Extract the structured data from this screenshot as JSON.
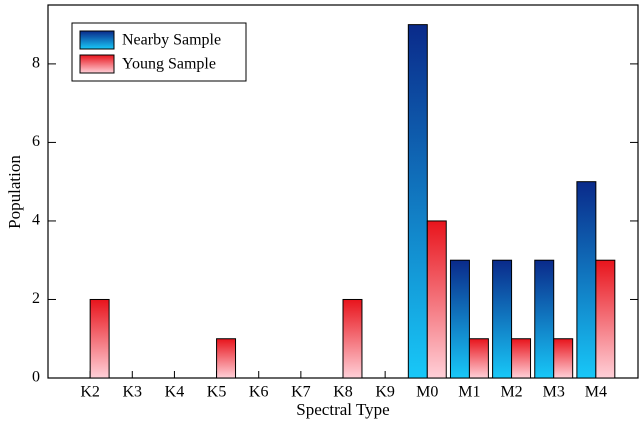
{
  "chart_data": {
    "type": "bar",
    "x_label": "Spectral Type",
    "y_label": "Population",
    "categories": [
      "K2",
      "K3",
      "K4",
      "K5",
      "K6",
      "K7",
      "K8",
      "K9",
      "M0",
      "M1",
      "M2",
      "M3",
      "M4"
    ],
    "series": [
      {
        "name": "Nearby Sample",
        "color": "#0a2a8a",
        "values": [
          0,
          0,
          0,
          0,
          0,
          0,
          0,
          0,
          9,
          3,
          3,
          3,
          5
        ]
      },
      {
        "name": "Young Sample",
        "color": "#e8141c",
        "values": [
          2,
          0,
          0,
          1,
          0,
          0,
          2,
          0,
          4,
          1,
          1,
          1,
          3
        ]
      }
    ],
    "ylim": [
      0,
      9.5
    ],
    "yticks": [
      0,
      2,
      4,
      6,
      8
    ],
    "legend": "upper left"
  }
}
